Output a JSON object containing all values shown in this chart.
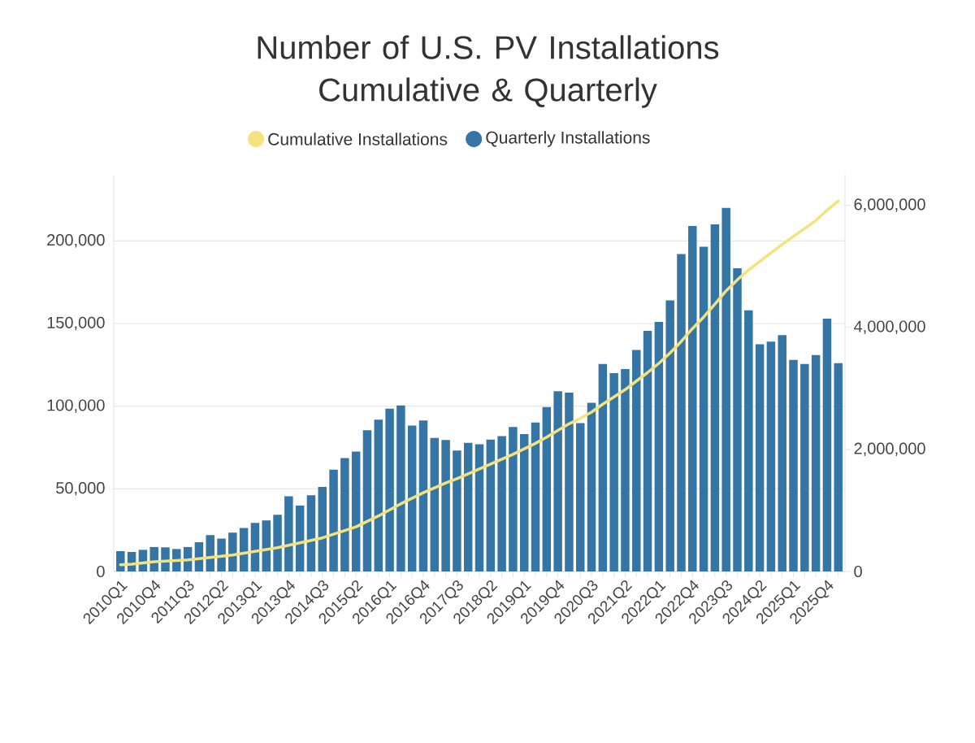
{
  "chart_data": {
    "type": "bar",
    "title": "Number of U.S. PV Installations Cumulative & Quarterly",
    "categories": [
      "2010Q1",
      null,
      null,
      "2010Q4",
      null,
      null,
      "2011Q3",
      null,
      null,
      "2012Q2",
      null,
      null,
      "2013Q1",
      null,
      null,
      "2013Q4",
      null,
      null,
      "2014Q3",
      null,
      null,
      "2015Q2",
      null,
      null,
      "2016Q1",
      null,
      null,
      "2016Q4",
      null,
      null,
      "2017Q3",
      null,
      null,
      "2018Q2",
      null,
      null,
      "2019Q1",
      null,
      null,
      "2019Q4",
      null,
      null,
      "2020Q3",
      null,
      null,
      "2021Q2",
      null,
      null,
      "2022Q1",
      null,
      null,
      "2022Q4",
      null,
      null,
      "2023Q3",
      null,
      null,
      "2024Q2",
      null,
      null,
      "2025Q1",
      null,
      null,
      "2025Q4",
      null
    ],
    "series": [
      {
        "name": "Cumulative Installations",
        "type": "line",
        "axis": "y2",
        "color": "#f6e27a",
        "values": [
          110000,
          120000,
          140000,
          160000,
          170000,
          180000,
          190000,
          210000,
          230000,
          250000,
          270000,
          300000,
          330000,
          360000,
          390000,
          430000,
          470000,
          510000,
          550000,
          610000,
          670000,
          730000,
          820000,
          910000,
          1010000,
          1110000,
          1200000,
          1290000,
          1370000,
          1450000,
          1520000,
          1600000,
          1680000,
          1760000,
          1840000,
          1920000,
          2010000,
          2100000,
          2200000,
          2310000,
          2420000,
          2510000,
          2610000,
          2740000,
          2860000,
          2980000,
          3120000,
          3260000,
          3410000,
          3580000,
          3770000,
          3980000,
          4170000,
          4380000,
          4600000,
          4780000,
          4940000,
          5080000,
          5220000,
          5360000,
          5490000,
          5620000,
          5750000,
          5920000,
          6070000
        ]
      },
      {
        "name": "Quarterly Installations",
        "color": "#3475a6",
        "values": [
          12300,
          11800,
          13100,
          14800,
          14600,
          13600,
          14800,
          17700,
          22000,
          19900,
          23500,
          26300,
          29400,
          30900,
          34300,
          45500,
          39900,
          46100,
          51100,
          61600,
          68600,
          72600,
          85500,
          91800,
          98500,
          100500,
          88300,
          91300,
          80800,
          79600,
          73100,
          77800,
          77000,
          79800,
          81900,
          87400,
          83100,
          90100,
          99500,
          109000,
          108200,
          89700,
          102000,
          125500,
          120000,
          122400,
          134000,
          145600,
          151000,
          164000,
          192000,
          209000,
          196500,
          210000,
          220000,
          183500,
          158000,
          137500,
          139000,
          143000,
          128000,
          125500,
          131000,
          153000,
          126000
        ]
      }
    ],
    "ylim": [
      0,
      240000
    ],
    "yticks": [
      0,
      {
        "value": 50000,
        "label": "50,000"
      },
      {
        "value": 100000,
        "label": "100,000"
      },
      {
        "value": 150000,
        "label": "150,000"
      },
      {
        "value": 200000,
        "label": "200,000"
      }
    ],
    "y2lim": [
      0,
      6500000
    ],
    "y2ticks": [
      0,
      {
        "value": 2000000,
        "label": "2,000,000"
      },
      {
        "value": 4000000,
        "label": "4,000,000"
      },
      {
        "value": 6000000,
        "label": "6,000,000"
      }
    ],
    "grid": "y",
    "legend": "top"
  }
}
